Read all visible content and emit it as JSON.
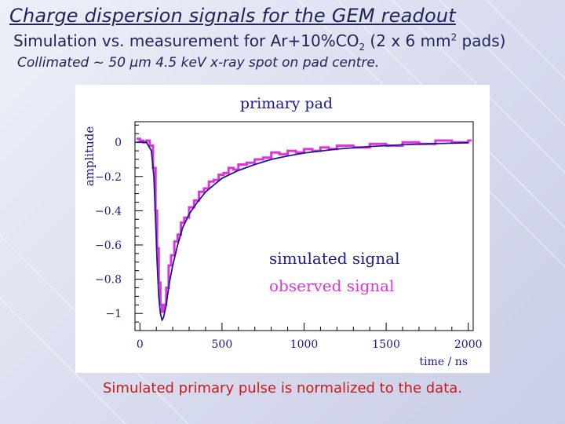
{
  "slide": {
    "title": "Charge dispersion signals for the GEM readout",
    "subtitle_main": "Simulation vs. measurement for Ar+10%CO",
    "subtitle_sub": "2",
    "subtitle_mid": " (2 x 6 mm",
    "subtitle_sup": "2",
    "subtitle_end": " pads)",
    "subtitle2": "Collimated ~ 50 µm 4.5 keV x-ray spot on pad centre.",
    "caption": "Simulated primary pulse is normalized to the data."
  },
  "colors": {
    "title": "#23235c",
    "simulated": "#1a1a8c",
    "observed": "#e033e0",
    "caption": "#cc1a1a"
  },
  "chart_data": {
    "type": "line",
    "title": "primary pad",
    "xlabel": "time / ns",
    "ylabel": "amplitude",
    "xlim": [
      -30,
      2030
    ],
    "ylim": [
      -1.1,
      0.12
    ],
    "x_ticks": [
      0,
      500,
      1000,
      1500,
      2000
    ],
    "x_tick_labels": [
      "0",
      "500",
      "1000",
      "1500",
      "2000"
    ],
    "y_ticks": [
      0,
      -0.2,
      -0.4,
      -0.6,
      -0.8,
      -1
    ],
    "y_tick_labels": [
      "0",
      "−0.2",
      "−0.4",
      "−0.6",
      "−0.8",
      "−1"
    ],
    "grid": false,
    "legend_position": "center-right",
    "series": [
      {
        "name": "simulated signal",
        "style": "line",
        "points": [
          [
            -20,
            0.0
          ],
          [
            40,
            0.0
          ],
          [
            70,
            -0.05
          ],
          [
            85,
            -0.2
          ],
          [
            95,
            -0.45
          ],
          [
            105,
            -0.7
          ],
          [
            115,
            -0.9
          ],
          [
            125,
            -1.0
          ],
          [
            135,
            -1.04
          ],
          [
            145,
            -1.02
          ],
          [
            160,
            -0.95
          ],
          [
            180,
            -0.82
          ],
          [
            200,
            -0.72
          ],
          [
            230,
            -0.6
          ],
          [
            260,
            -0.5
          ],
          [
            300,
            -0.42
          ],
          [
            350,
            -0.35
          ],
          [
            400,
            -0.29
          ],
          [
            450,
            -0.25
          ],
          [
            500,
            -0.21
          ],
          [
            600,
            -0.165
          ],
          [
            700,
            -0.13
          ],
          [
            800,
            -0.1
          ],
          [
            900,
            -0.08
          ],
          [
            1000,
            -0.063
          ],
          [
            1200,
            -0.04
          ],
          [
            1400,
            -0.025
          ],
          [
            1600,
            -0.015
          ],
          [
            1800,
            -0.008
          ],
          [
            2000,
            -0.003
          ]
        ]
      },
      {
        "name": "observed signal",
        "style": "step",
        "points": [
          [
            -20,
            0.02
          ],
          [
            0,
            0.01
          ],
          [
            20,
            0.0
          ],
          [
            40,
            0.01
          ],
          [
            60,
            -0.02
          ],
          [
            80,
            -0.15
          ],
          [
            95,
            -0.4
          ],
          [
            105,
            -0.62
          ],
          [
            115,
            -0.82
          ],
          [
            125,
            -0.95
          ],
          [
            135,
            -0.99
          ],
          [
            145,
            -0.95
          ],
          [
            160,
            -0.85
          ],
          [
            175,
            -0.72
          ],
          [
            190,
            -0.66
          ],
          [
            210,
            -0.58
          ],
          [
            230,
            -0.54
          ],
          [
            250,
            -0.47
          ],
          [
            270,
            -0.44
          ],
          [
            300,
            -0.38
          ],
          [
            330,
            -0.34
          ],
          [
            360,
            -0.29
          ],
          [
            390,
            -0.27
          ],
          [
            420,
            -0.23
          ],
          [
            450,
            -0.22
          ],
          [
            480,
            -0.19
          ],
          [
            510,
            -0.18
          ],
          [
            540,
            -0.15
          ],
          [
            570,
            -0.16
          ],
          [
            600,
            -0.13
          ],
          [
            650,
            -0.12
          ],
          [
            700,
            -0.1
          ],
          [
            750,
            -0.09
          ],
          [
            800,
            -0.06
          ],
          [
            850,
            -0.07
          ],
          [
            900,
            -0.05
          ],
          [
            950,
            -0.06
          ],
          [
            1000,
            -0.04
          ],
          [
            1050,
            -0.05
          ],
          [
            1100,
            -0.03
          ],
          [
            1150,
            -0.04
          ],
          [
            1200,
            -0.02
          ],
          [
            1300,
            -0.03
          ],
          [
            1400,
            -0.01
          ],
          [
            1500,
            -0.02
          ],
          [
            1600,
            0.0
          ],
          [
            1700,
            -0.01
          ],
          [
            1800,
            0.01
          ],
          [
            1900,
            0.0
          ],
          [
            2000,
            0.01
          ]
        ]
      }
    ]
  }
}
